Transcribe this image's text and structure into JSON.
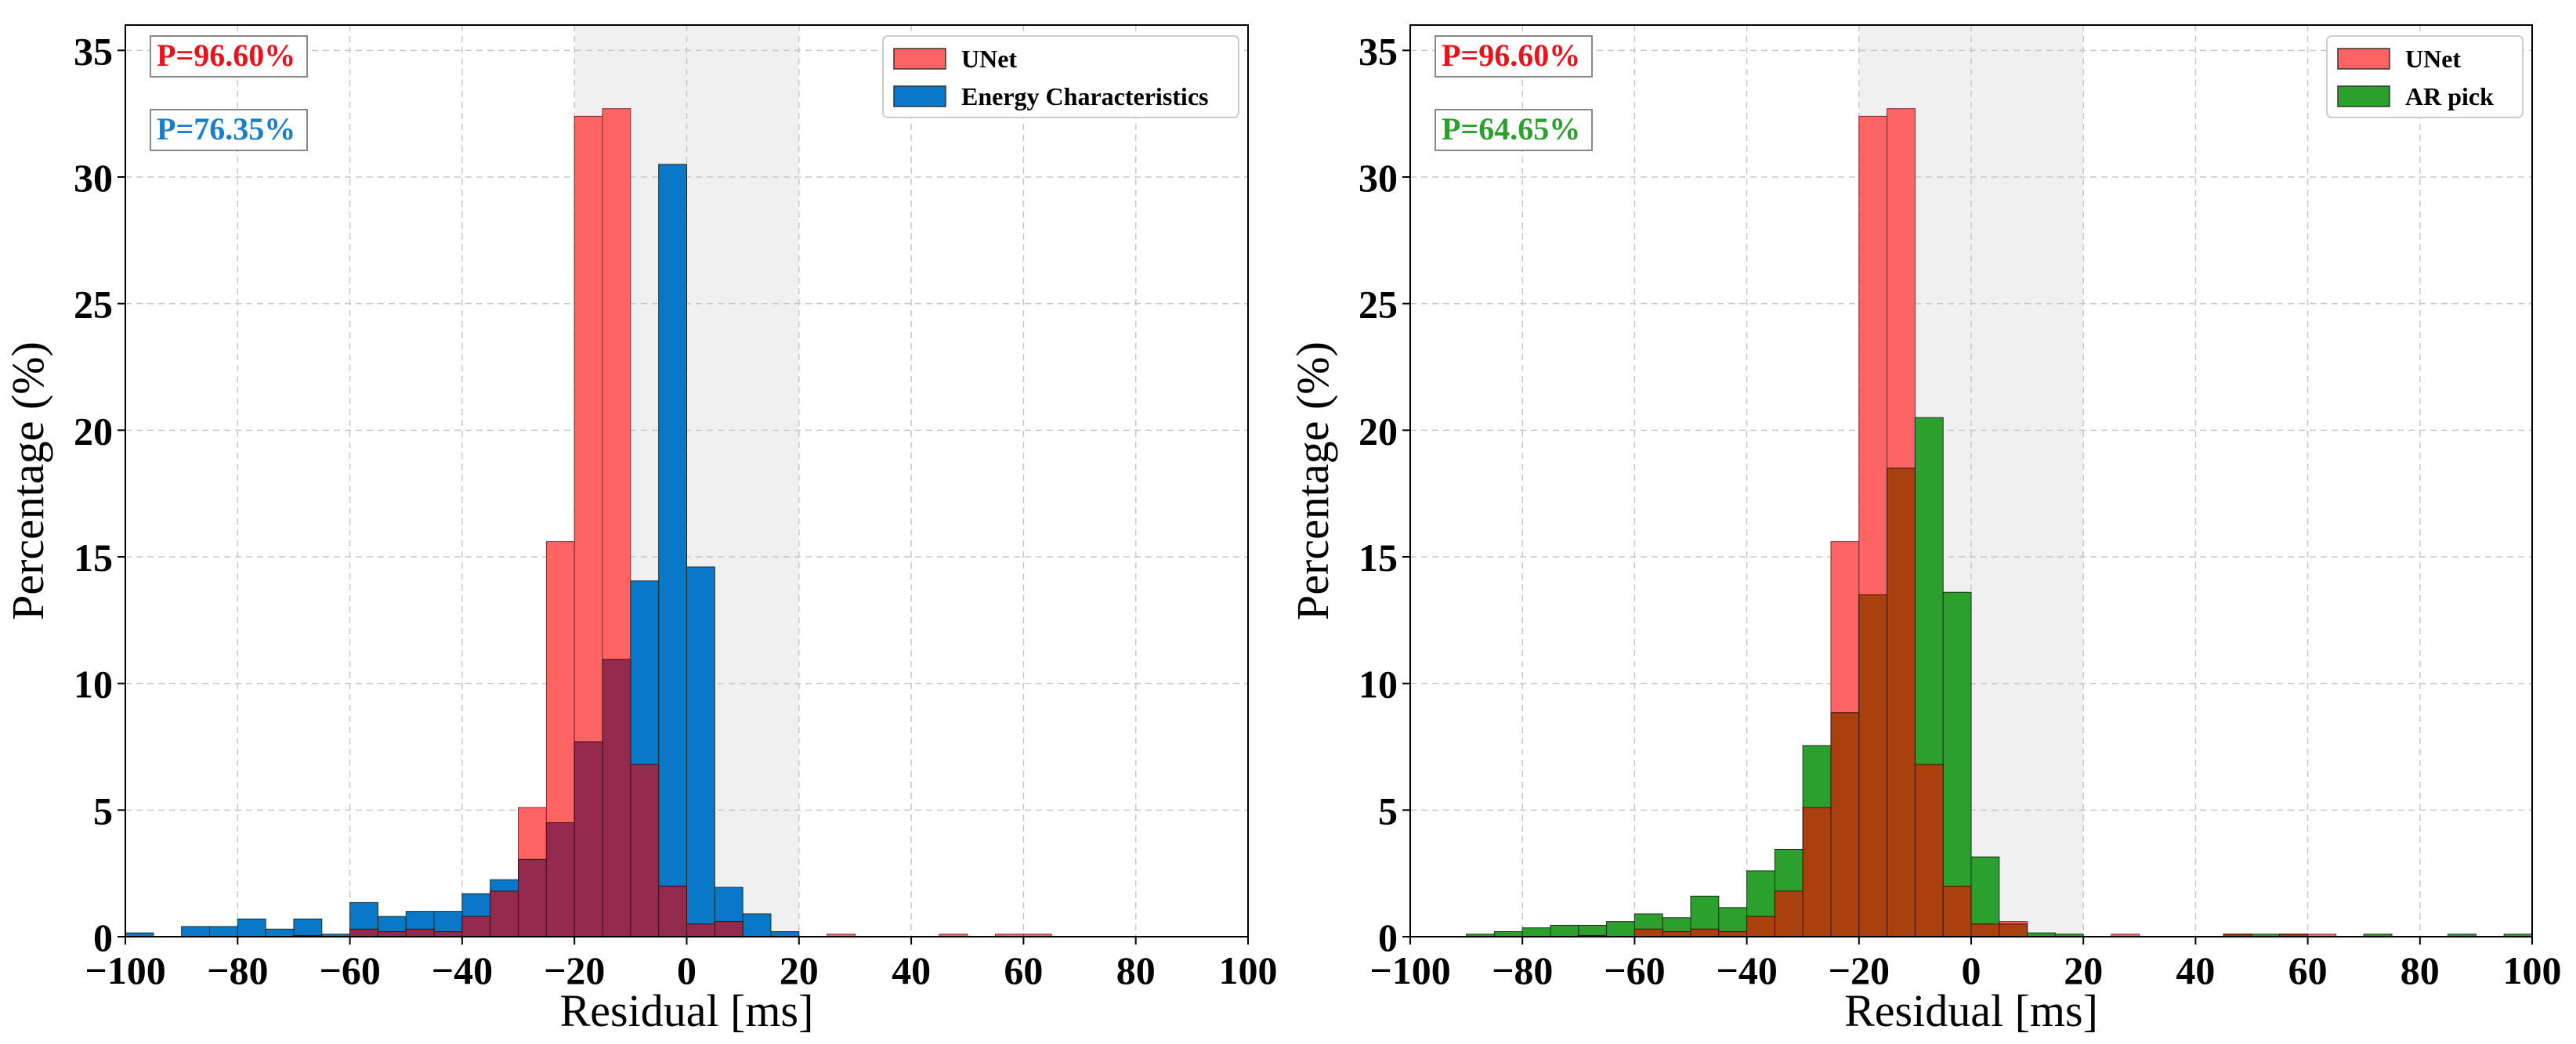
{
  "colors": {
    "unet": "#ff6464",
    "energy": "#0a78c8",
    "energy_overlap": "#942a4e",
    "ar": "#2ca02c",
    "ar_overlap": "#ab400f",
    "shade": "#f0f0f0",
    "grid": "#c8c8c8",
    "p_unet_text": "#e8141c",
    "p_energy_text": "#1a7fc8",
    "p_ar_text": "#2ca02c"
  },
  "chart_data": [
    {
      "type": "histogram",
      "title": "",
      "xlabel": "Residual [ms]",
      "ylabel": "Percentage (%)",
      "xlim": [
        -100,
        100
      ],
      "ylim": [
        0,
        36
      ],
      "xticks": [
        "−100",
        "−80",
        "−60",
        "−40",
        "−20",
        "0",
        "20",
        "40",
        "60",
        "80",
        "100"
      ],
      "yticks": [
        "0",
        "5",
        "10",
        "15",
        "20",
        "25",
        "30",
        "35"
      ],
      "grid": true,
      "legend_position": "top-right",
      "shaded_region": [
        -20,
        20
      ],
      "bin_width": 5,
      "bin_start": -100,
      "annotations": [
        "P=96.60%",
        "P=76.35%"
      ],
      "series": [
        {
          "name": "UNet",
          "values": [
            0,
            0,
            0,
            0,
            0,
            0,
            0.05,
            0,
            0.3,
            0.2,
            0.3,
            0.2,
            0.8,
            1.8,
            5.1,
            15.6,
            32.4,
            32.7,
            6.8,
            2.0,
            0.5,
            0.6,
            0,
            0,
            0,
            0.1,
            0,
            0,
            0,
            0.1,
            0,
            0.1,
            0.1,
            0,
            0,
            0,
            0,
            0,
            0,
            0
          ]
        },
        {
          "name": "Energy Characteristics",
          "values": [
            0.15,
            0,
            0.4,
            0.4,
            0.7,
            0.3,
            0.7,
            0.1,
            1.35,
            0.8,
            1.0,
            1.0,
            1.7,
            2.25,
            3.05,
            4.5,
            7.7,
            10.95,
            14.05,
            30.5,
            14.6,
            1.95,
            0.9,
            0.2,
            0,
            0,
            0,
            0,
            0,
            0,
            0,
            0,
            0,
            0,
            0,
            0,
            0,
            0,
            0,
            0
          ]
        }
      ]
    },
    {
      "type": "histogram",
      "title": "",
      "xlabel": "Residual [ms]",
      "ylabel": "Percentage (%)",
      "xlim": [
        -100,
        100
      ],
      "ylim": [
        0,
        36
      ],
      "xticks": [
        "−100",
        "−80",
        "−60",
        "−40",
        "−20",
        "0",
        "20",
        "40",
        "60",
        "80",
        "100"
      ],
      "yticks": [
        "0",
        "5",
        "10",
        "15",
        "20",
        "25",
        "30",
        "35"
      ],
      "grid": true,
      "legend_position": "top-right",
      "shaded_region": [
        -20,
        20
      ],
      "bin_width": 5,
      "bin_start": -100,
      "annotations": [
        "P=96.60%",
        "P=64.65%"
      ],
      "series": [
        {
          "name": "UNet",
          "values": [
            0,
            0,
            0,
            0,
            0,
            0,
            0.05,
            0,
            0.3,
            0.2,
            0.3,
            0.2,
            0.8,
            1.8,
            5.1,
            15.6,
            32.4,
            32.7,
            6.8,
            2.0,
            0.5,
            0.6,
            0,
            0,
            0,
            0.1,
            0,
            0,
            0,
            0.1,
            0,
            0.1,
            0.1,
            0,
            0,
            0,
            0,
            0,
            0,
            0
          ]
        },
        {
          "name": "AR pick",
          "values": [
            0,
            0,
            0.1,
            0.2,
            0.35,
            0.45,
            0.45,
            0.6,
            0.9,
            0.75,
            1.6,
            1.15,
            2.6,
            3.45,
            7.55,
            8.85,
            13.5,
            18.5,
            20.5,
            13.6,
            3.15,
            0.5,
            0.15,
            0.1,
            0,
            0,
            0,
            0,
            0,
            0.1,
            0.1,
            0.1,
            0,
            0,
            0.1,
            0,
            0,
            0.1,
            0,
            0.1
          ]
        }
      ]
    }
  ]
}
